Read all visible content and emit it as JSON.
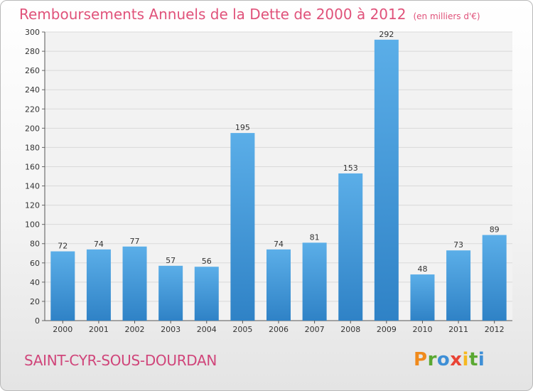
{
  "header": {
    "title": "Remboursements Annuels de la Dette de 2000 à 2012",
    "subtitle": "(en milliers d'€)"
  },
  "footer": {
    "city": "SAINT-CYR-SOUS-DOURDAN",
    "logo_letters": [
      "P",
      "r",
      "o",
      "x",
      "i",
      "t",
      "i"
    ]
  },
  "colors": {
    "bar_top": "#5baee8",
    "bar_bottom": "#2f82c6",
    "title": "#e0527a",
    "grid": "#d9d9d9",
    "plot_bg": "#f2f2f2"
  },
  "chart_data": {
    "type": "bar",
    "categories": [
      "2000",
      "2001",
      "2002",
      "2003",
      "2004",
      "2005",
      "2006",
      "2007",
      "2008",
      "2009",
      "2010",
      "2011",
      "2012"
    ],
    "values": [
      72,
      74,
      77,
      57,
      56,
      195,
      74,
      81,
      153,
      292,
      48,
      73,
      89
    ],
    "ylim": [
      0,
      300
    ],
    "yticks": [
      0,
      20,
      40,
      60,
      80,
      100,
      120,
      140,
      160,
      180,
      200,
      220,
      240,
      260,
      280,
      300
    ],
    "grid": true,
    "data_labels": true
  }
}
